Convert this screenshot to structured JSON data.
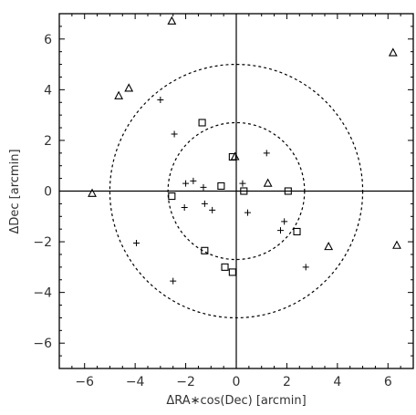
{
  "chart_data": {
    "type": "scatter",
    "title": "",
    "xlabel": "ΔRA∗cos(Dec) [arcmin]",
    "ylabel": "ΔDec [arcmin]",
    "xlim": [
      -7,
      7
    ],
    "ylim": [
      -7,
      7
    ],
    "xticks": [
      -6,
      -4,
      -2,
      0,
      2,
      4,
      6
    ],
    "yticks": [
      -6,
      -4,
      -2,
      0,
      2,
      4,
      6
    ],
    "xtick_labels": [
      "−6",
      "−4",
      "−2",
      "0",
      "2",
      "4",
      "6"
    ],
    "ytick_labels": [
      "−6",
      "−4",
      "−2",
      "0",
      "2",
      "4",
      "6"
    ],
    "grid": false,
    "reference_lines": {
      "x": 0,
      "y": 0
    },
    "circles": [
      {
        "center": [
          0,
          0
        ],
        "radius": 2.7,
        "style": "dashed"
      },
      {
        "center": [
          0,
          0
        ],
        "radius": 5.0,
        "style": "dashed"
      }
    ],
    "series": [
      {
        "marker": "triangle",
        "points": [
          [
            -2.55,
            6.7
          ],
          [
            -4.65,
            3.75
          ],
          [
            -4.25,
            4.05
          ],
          [
            -5.7,
            -0.1
          ],
          [
            -0.05,
            1.35
          ],
          [
            1.25,
            0.3
          ],
          [
            3.65,
            -2.2
          ],
          [
            6.2,
            5.45
          ],
          [
            6.35,
            -2.15
          ]
        ]
      },
      {
        "marker": "square",
        "points": [
          [
            -1.35,
            2.7
          ],
          [
            -0.15,
            1.35
          ],
          [
            -2.55,
            -0.2
          ],
          [
            -0.6,
            0.2
          ],
          [
            0.3,
            0.0
          ],
          [
            2.05,
            0.0
          ],
          [
            2.4,
            -1.6
          ],
          [
            -1.25,
            -2.35
          ],
          [
            -0.45,
            -3.0
          ],
          [
            -0.15,
            -3.2
          ]
        ]
      },
      {
        "marker": "plus",
        "points": [
          [
            -3.0,
            3.6
          ],
          [
            -2.45,
            2.25
          ],
          [
            1.2,
            1.5
          ],
          [
            -2.0,
            0.3
          ],
          [
            -1.7,
            0.4
          ],
          [
            -1.3,
            0.15
          ],
          [
            0.25,
            0.3
          ],
          [
            -2.05,
            -0.65
          ],
          [
            -1.25,
            -0.5
          ],
          [
            -0.95,
            -0.75
          ],
          [
            0.45,
            -0.85
          ],
          [
            1.9,
            -1.2
          ],
          [
            1.75,
            -1.55
          ],
          [
            -3.95,
            -2.05
          ],
          [
            2.75,
            -3.0
          ],
          [
            -2.5,
            -3.55
          ]
        ]
      }
    ]
  }
}
